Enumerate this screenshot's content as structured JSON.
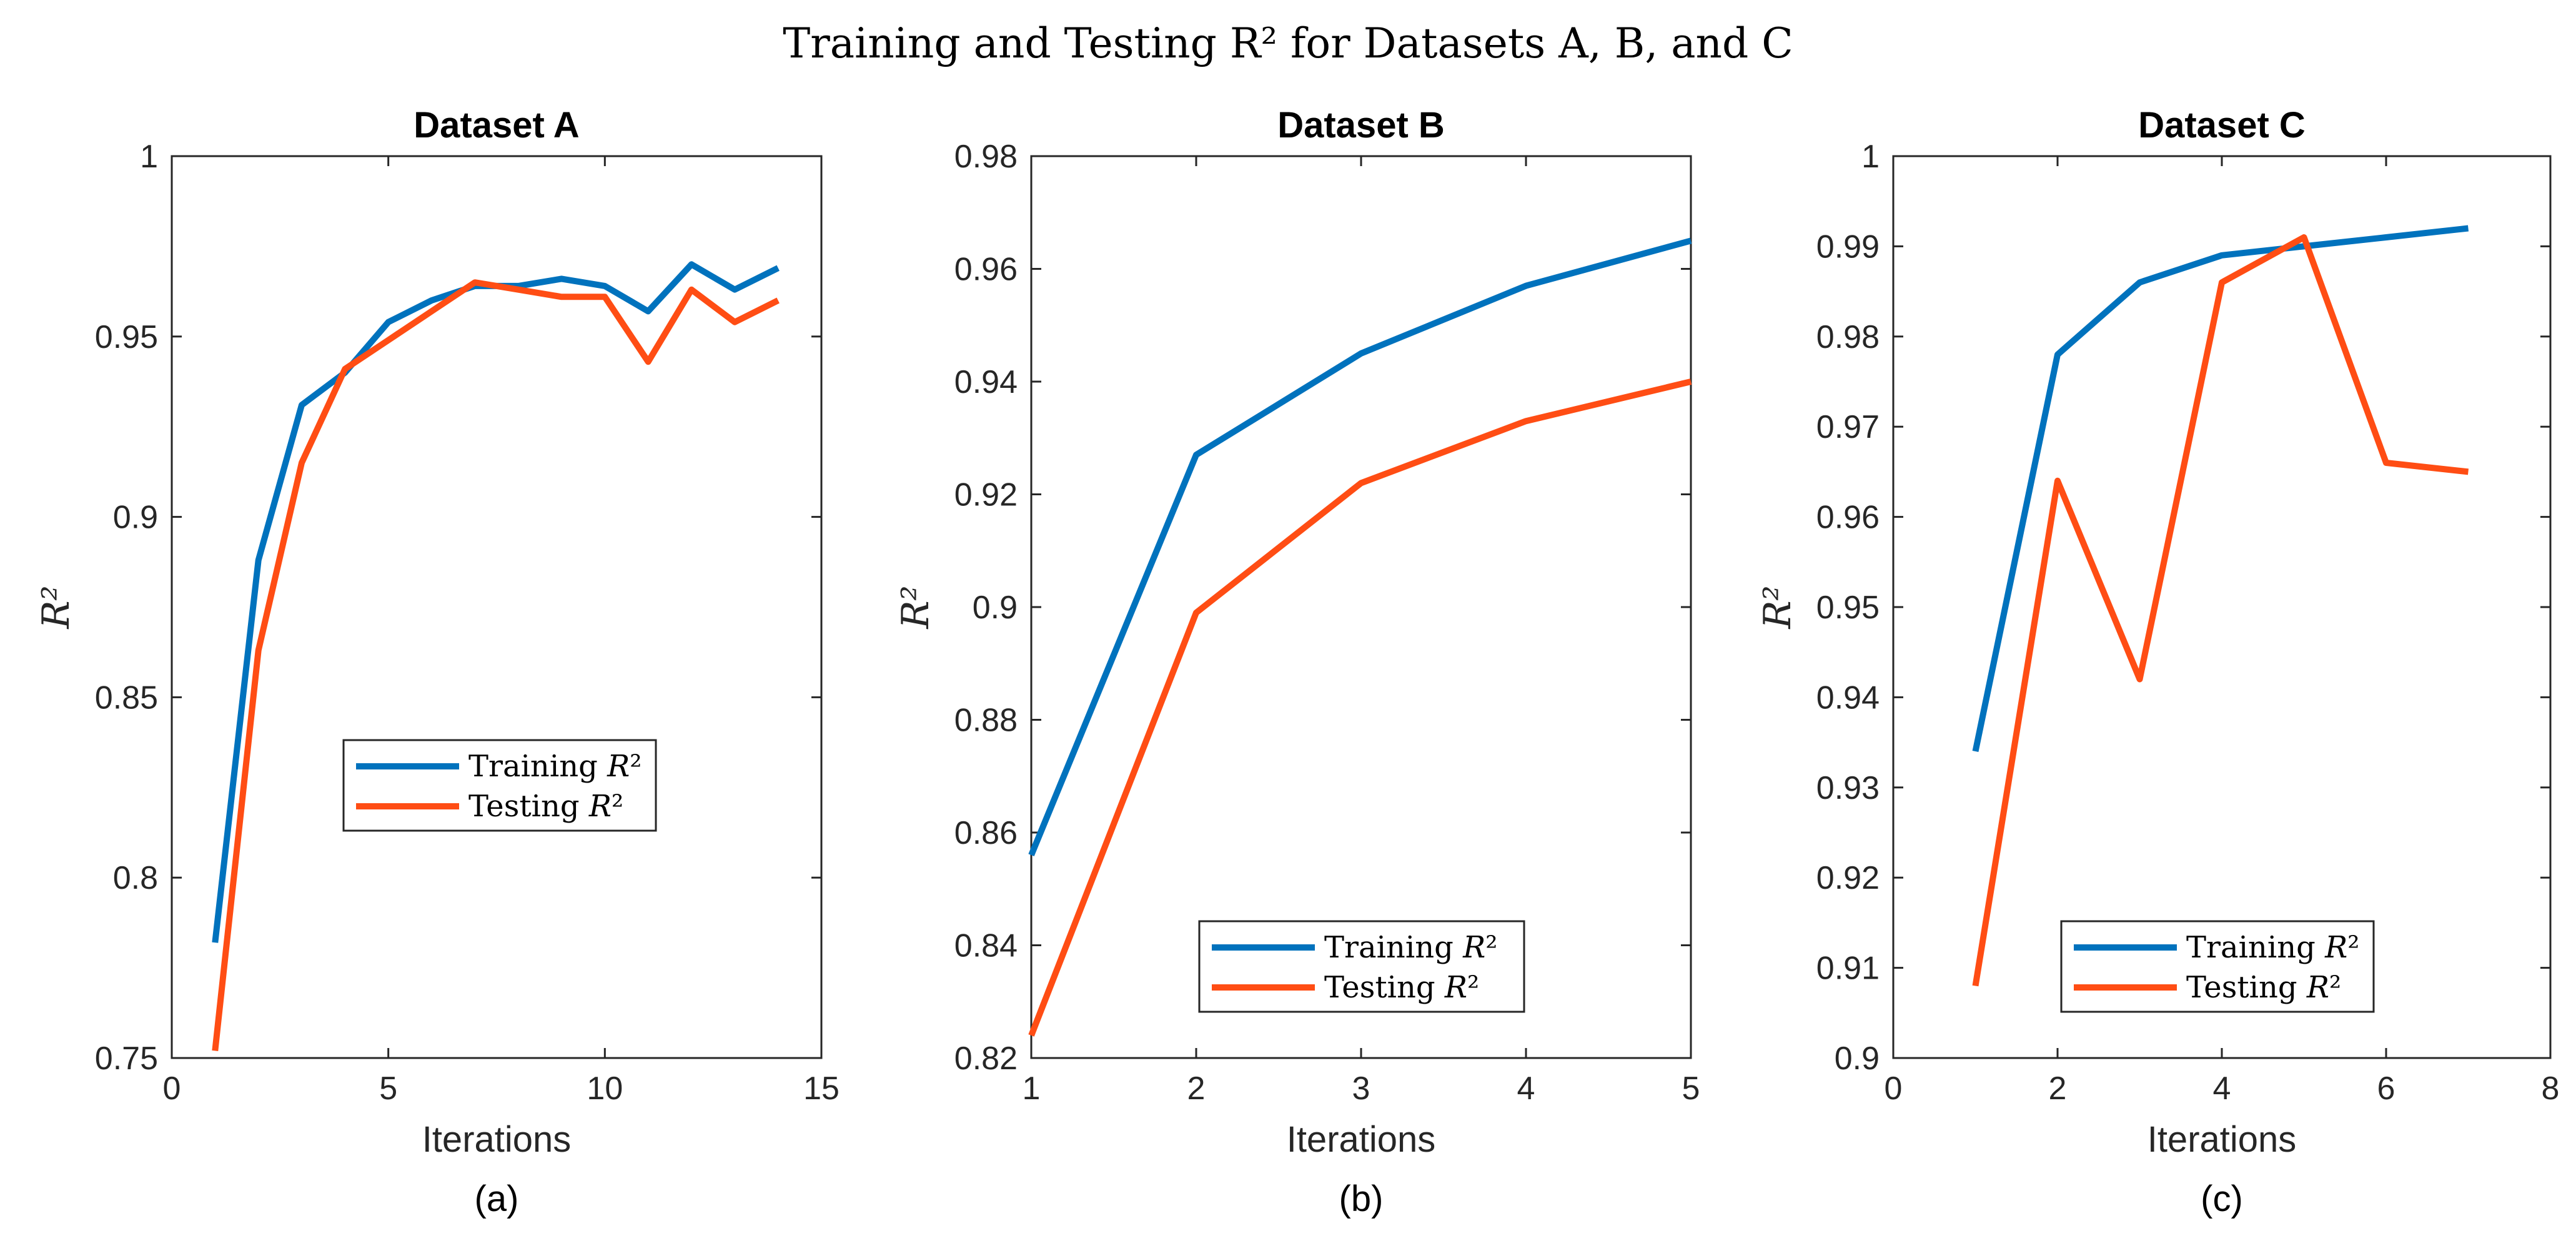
{
  "figure_title": "Training and Testing R² for Datasets A, B, and C",
  "colors": {
    "training": "#0072BD",
    "testing": "#FF4D14"
  },
  "chart_data": [
    {
      "type": "line",
      "title": "Dataset A",
      "sublabel": "(a)",
      "xlabel": "Iterations",
      "ylabel": "R²",
      "xlim": [
        0,
        15
      ],
      "ylim": [
        0.75,
        1.0
      ],
      "xticks": [
        0,
        5,
        10,
        15
      ],
      "xtick_labels": [
        "0",
        "5",
        "10",
        "15"
      ],
      "yticks": [
        0.75,
        0.8,
        0.85,
        0.9,
        0.95,
        1.0
      ],
      "ytick_labels": [
        "0.75",
        "0.8",
        "0.85",
        "0.9",
        "0.95",
        "1"
      ],
      "legend_position": "center",
      "series": [
        {
          "name": "Training R²",
          "x": [
            1,
            2,
            3,
            4,
            5,
            6,
            7,
            8,
            9,
            10,
            11,
            12,
            13,
            14
          ],
          "values": [
            0.782,
            0.888,
            0.931,
            0.94,
            0.954,
            0.96,
            0.964,
            0.964,
            0.966,
            0.964,
            0.957,
            0.97,
            0.963,
            0.969
          ]
        },
        {
          "name": "Testing R²",
          "x": [
            1,
            2,
            3,
            4,
            5,
            6,
            7,
            8,
            9,
            10,
            11,
            12,
            13,
            14
          ],
          "values": [
            0.752,
            0.863,
            0.915,
            0.941,
            0.949,
            0.957,
            0.965,
            0.963,
            0.961,
            0.961,
            0.943,
            0.963,
            0.954,
            0.96
          ]
        }
      ]
    },
    {
      "type": "line",
      "title": "Dataset B",
      "sublabel": "(b)",
      "xlabel": "Iterations",
      "ylabel": "R²",
      "xlim": [
        1,
        5
      ],
      "ylim": [
        0.82,
        0.98
      ],
      "xticks": [
        1,
        2,
        3,
        4,
        5
      ],
      "xtick_labels": [
        "1",
        "2",
        "3",
        "4",
        "5"
      ],
      "yticks": [
        0.82,
        0.84,
        0.86,
        0.88,
        0.9,
        0.92,
        0.94,
        0.96,
        0.98
      ],
      "ytick_labels": [
        "0.82",
        "0.84",
        "0.86",
        "0.88",
        "0.9",
        "0.92",
        "0.94",
        "0.96",
        "0.98"
      ],
      "legend_position": "bottom-center",
      "series": [
        {
          "name": "Training R²",
          "x": [
            1,
            2,
            3,
            4,
            5
          ],
          "values": [
            0.856,
            0.927,
            0.945,
            0.957,
            0.965
          ]
        },
        {
          "name": "Testing R²",
          "x": [
            1,
            2,
            3,
            4,
            5
          ],
          "values": [
            0.824,
            0.899,
            0.922,
            0.933,
            0.94
          ]
        }
      ]
    },
    {
      "type": "line",
      "title": "Dataset C",
      "sublabel": "(c)",
      "xlabel": "Iterations",
      "ylabel": "R²",
      "xlim": [
        0,
        8
      ],
      "ylim": [
        0.9,
        1.0
      ],
      "xticks": [
        0,
        2,
        4,
        6,
        8
      ],
      "xtick_labels": [
        "0",
        "2",
        "4",
        "6",
        "8"
      ],
      "yticks": [
        0.9,
        0.91,
        0.92,
        0.93,
        0.94,
        0.95,
        0.96,
        0.97,
        0.98,
        0.99,
        1.0
      ],
      "ytick_labels": [
        "0.9",
        "0.91",
        "0.92",
        "0.93",
        "0.94",
        "0.95",
        "0.96",
        "0.97",
        "0.98",
        "0.99",
        "1"
      ],
      "legend_position": "bottom-center",
      "series": [
        {
          "name": "Training R²",
          "x": [
            1,
            2,
            3,
            4,
            5,
            6,
            7
          ],
          "values": [
            0.934,
            0.978,
            0.986,
            0.989,
            0.99,
            0.991,
            0.992
          ]
        },
        {
          "name": "Testing R²",
          "x": [
            1,
            2,
            3,
            4,
            5,
            6,
            7
          ],
          "values": [
            0.908,
            0.964,
            0.942,
            0.986,
            0.991,
            0.966,
            0.965
          ]
        }
      ]
    }
  ]
}
